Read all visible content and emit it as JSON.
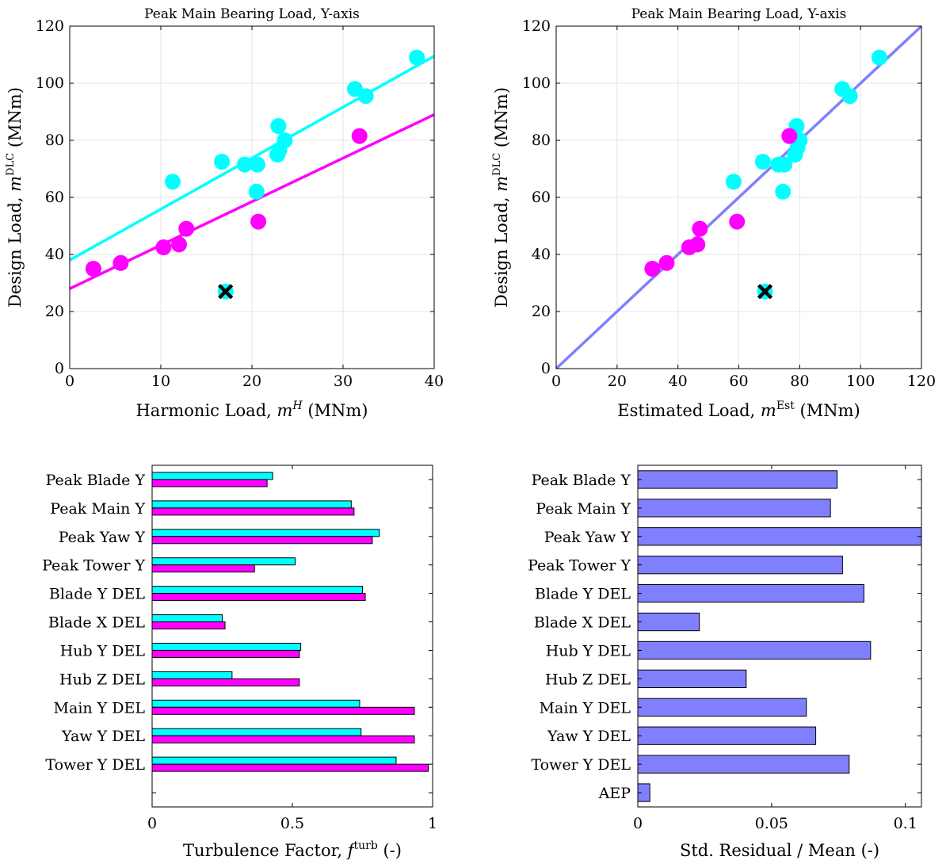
{
  "chart_data": [
    {
      "type": "scatter",
      "title": "Peak Main Bearing Load, Y-axis",
      "xlabel": "Harmonic Load, ",
      "xlabel_var": "m",
      "xlabel_sup": "H",
      "xlabel_unit": " (MNm)",
      "ylabel": "Design Load, ",
      "ylabel_var": "m",
      "ylabel_sup": "DLC",
      "ylabel_unit": " (MNm)",
      "xlim": [
        0,
        40
      ],
      "ylim": [
        0,
        120
      ],
      "xticks": [
        0,
        10,
        20,
        30,
        40
      ],
      "yticks": [
        0,
        20,
        40,
        60,
        80,
        100,
        120
      ],
      "grid": true,
      "colors": {
        "cyan": "#00ffff",
        "magenta": "#ff00ff"
      },
      "series": [
        {
          "color": "#00ffff",
          "points": [
            [
              11.3,
              65.5
            ],
            [
              16.7,
              72.5
            ],
            [
              19.2,
              71.5
            ],
            [
              20.6,
              71.5
            ],
            [
              20.5,
              62.0
            ],
            [
              22.8,
              75.0
            ],
            [
              23.0,
              76.5
            ],
            [
              22.9,
              85.0
            ],
            [
              23.6,
              80.0
            ],
            [
              31.3,
              98.0
            ],
            [
              32.5,
              95.5
            ],
            [
              38.1,
              109.0
            ],
            [
              17.1,
              27.0
            ]
          ],
          "fit": [
            [
              0,
              38.0
            ],
            [
              40,
              109.5
            ]
          ]
        },
        {
          "color": "#ff00ff",
          "points": [
            [
              2.6,
              35.0
            ],
            [
              5.6,
              37.0
            ],
            [
              10.3,
              42.5
            ],
            [
              12.0,
              43.5
            ],
            [
              12.8,
              49.0
            ],
            [
              20.7,
              51.5
            ],
            [
              31.8,
              81.5
            ]
          ],
          "fit": [
            [
              0,
              28.0
            ],
            [
              40,
              89.0
            ]
          ]
        }
      ],
      "outlier": {
        "x": 17.1,
        "y": 27.0,
        "marker": "x"
      }
    },
    {
      "type": "scatter",
      "title": "Peak Main Bearing Load, Y-axis",
      "xlabel": "Estimated Load, ",
      "xlabel_var": "m",
      "xlabel_sup": "Est",
      "xlabel_unit": " (MNm)",
      "ylabel": "Design Load, ",
      "ylabel_var": "m",
      "ylabel_sup": "DLC",
      "ylabel_unit": " (MNm)",
      "xlim": [
        0,
        120
      ],
      "ylim": [
        0,
        120
      ],
      "xticks": [
        0,
        20,
        40,
        60,
        80,
        100,
        120
      ],
      "yticks": [
        0,
        20,
        40,
        60,
        80,
        100,
        120
      ],
      "grid": true,
      "colors": {
        "cyan": "#00ffff",
        "magenta": "#ff00ff",
        "line": "#8080ff"
      },
      "series": [
        {
          "color": "#00ffff",
          "points": [
            [
              58.3,
              65.5
            ],
            [
              67.9,
              72.5
            ],
            [
              73.0,
              71.5
            ],
            [
              75.0,
              71.5
            ],
            [
              74.5,
              62.0
            ],
            [
              78.5,
              75.0
            ],
            [
              79.3,
              77.5
            ],
            [
              79.0,
              85.0
            ],
            [
              80.0,
              80.0
            ],
            [
              94.0,
              98.0
            ],
            [
              96.5,
              95.5
            ],
            [
              106.2,
              109.0
            ],
            [
              68.6,
              27.0
            ]
          ]
        },
        {
          "color": "#ff00ff",
          "points": [
            [
              31.6,
              35.0
            ],
            [
              36.3,
              37.0
            ],
            [
              43.7,
              42.5
            ],
            [
              46.4,
              43.5
            ],
            [
              47.2,
              49.0
            ],
            [
              59.4,
              51.5
            ],
            [
              76.6,
              81.5
            ]
          ]
        }
      ],
      "fit": {
        "color": "#8080ff",
        "points": [
          [
            0,
            0
          ],
          [
            120,
            120
          ]
        ]
      },
      "outlier": {
        "x": 68.6,
        "y": 27.0,
        "marker": "x"
      }
    },
    {
      "type": "bar",
      "orientation": "horizontal",
      "categories": [
        "Peak Blade Y",
        "Peak Main Y",
        "Peak Yaw Y",
        "Peak Tower Y",
        "Blade Y DEL",
        "Blade X DEL",
        "Hub Y DEL",
        "Hub Z DEL",
        "Main Y DEL",
        "Yaw Y DEL",
        "Tower Y DEL"
      ],
      "xlabel": "Turbulence Factor, ",
      "xlabel_var": "f",
      "xlabel_sup": "turb",
      "xlabel_unit": " (-)",
      "xlim": [
        0,
        1
      ],
      "xticks": [
        "0",
        "0.5",
        "1"
      ],
      "xtick_values": [
        0,
        0.5,
        1
      ],
      "series": [
        {
          "color": "#00ffff",
          "values": [
            0.43,
            0.71,
            0.81,
            0.51,
            0.75,
            0.25,
            0.53,
            0.285,
            0.74,
            0.745,
            0.87
          ]
        },
        {
          "color": "#ff00ff",
          "values": [
            0.41,
            0.72,
            0.785,
            0.365,
            0.76,
            0.26,
            0.525,
            0.525,
            0.935,
            0.935,
            0.985
          ]
        }
      ]
    },
    {
      "type": "bar",
      "orientation": "horizontal",
      "categories": [
        "Peak Blade Y",
        "Peak Main Y",
        "Peak Yaw Y",
        "Peak Tower Y",
        "Blade Y DEL",
        "Blade X DEL",
        "Hub Y DEL",
        "Hub Z DEL",
        "Main Y DEL",
        "Yaw Y DEL",
        "Tower Y DEL",
        "AEP"
      ],
      "xlabel": "Std. Residual / Mean (-)",
      "xlim": [
        0,
        0.106
      ],
      "xticks": [
        "0",
        "0.05",
        "0.1"
      ],
      "xtick_values": [
        0,
        0.05,
        0.1
      ],
      "series": [
        {
          "color": "#8080ff",
          "values": [
            0.0745,
            0.072,
            0.106,
            0.0765,
            0.0845,
            0.023,
            0.087,
            0.0405,
            0.063,
            0.0665,
            0.079,
            0.0045
          ]
        }
      ]
    }
  ]
}
